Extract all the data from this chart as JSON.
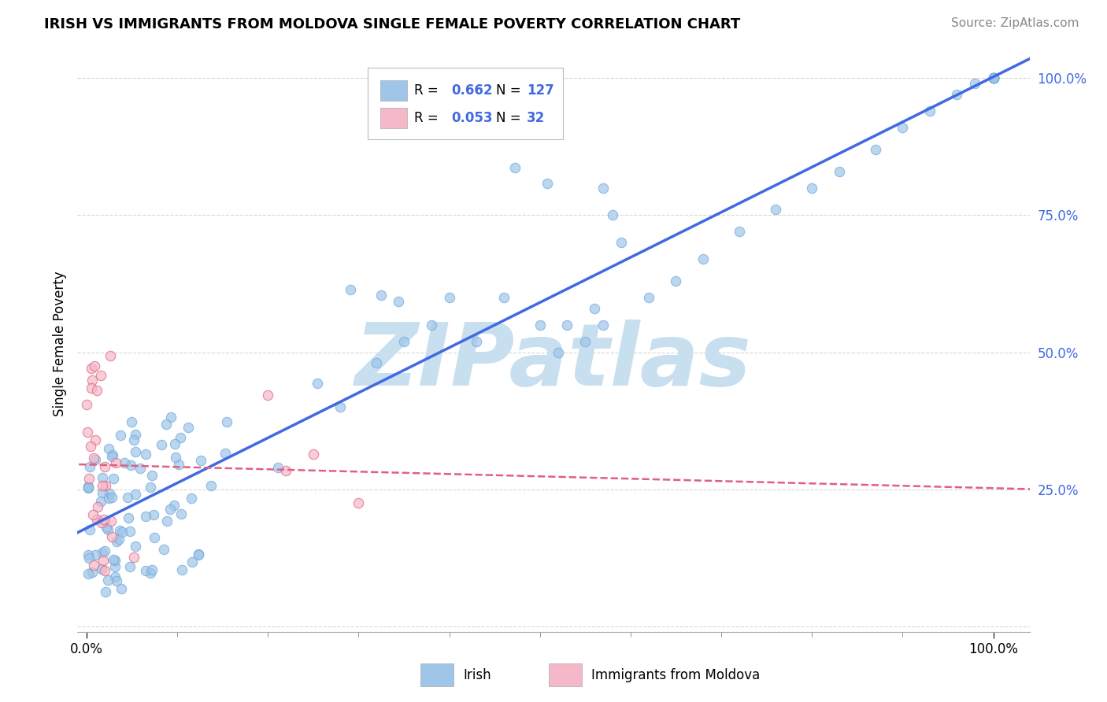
{
  "title": "IRISH VS IMMIGRANTS FROM MOLDOVA SINGLE FEMALE POVERTY CORRELATION CHART",
  "source": "Source: ZipAtlas.com",
  "ylabel": "Single Female Poverty",
  "legend_irish": "Irish",
  "legend_moldova": "Immigrants from Moldova",
  "irish_R": 0.662,
  "irish_N": 127,
  "moldova_R": 0.053,
  "moldova_N": 32,
  "irish_color": "#9FC5E8",
  "irish_edge_color": "#6FA8DC",
  "irish_line_color": "#4169E1",
  "moldova_color": "#F4B8C8",
  "moldova_edge_color": "#E06080",
  "moldova_line_color": "#E06080",
  "watermark": "ZIPatlas",
  "watermark_color": "#C8DFF0",
  "background_color": "#FFFFFF",
  "grid_color": "#D8D8D8",
  "ytick_color": "#4169E1",
  "title_fontsize": 13,
  "source_fontsize": 11
}
